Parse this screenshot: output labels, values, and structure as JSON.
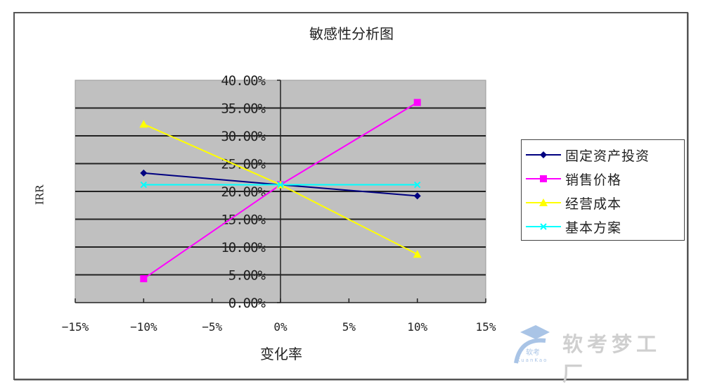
{
  "chart_data": {
    "type": "line",
    "title": "敏感性分析图",
    "xlabel": "变化率",
    "ylabel": "IRR",
    "x": [
      "-10%",
      "0%",
      "10%"
    ],
    "x_numeric": [
      -10,
      0,
      10
    ],
    "xlim": [
      -15,
      15
    ],
    "x_ticks": [
      "-15%",
      "-10%",
      "-5%",
      "0%",
      "5%",
      "10%",
      "15%"
    ],
    "ylim": [
      0,
      40
    ],
    "y_ticks": [
      "0.00%",
      "5.00%",
      "10.00%",
      "15.00%",
      "20.00%",
      "25.00%",
      "30.00%",
      "35.00%",
      "40.00%"
    ],
    "grid": true,
    "legend_position": "right",
    "series": [
      {
        "name": "固定资产投资",
        "color": "#000080",
        "marker": "diamond",
        "values": [
          23.3,
          21.2,
          19.2
        ]
      },
      {
        "name": "销售价格",
        "color": "#FF00FF",
        "marker": "square",
        "values": [
          4.3,
          21.2,
          36.0
        ]
      },
      {
        "name": "经营成本",
        "color": "#FFFF00",
        "marker": "triangle",
        "values": [
          32.1,
          21.2,
          8.7
        ]
      },
      {
        "name": "基本方案",
        "color": "#00FFFF",
        "marker": "x",
        "values": [
          21.2,
          21.2,
          21.2
        ]
      }
    ]
  },
  "labels": {
    "title": "敏感性分析图",
    "xlabel": "变化率",
    "ylabel": "IRR"
  },
  "legend": [
    {
      "label": "固定资产投资",
      "color": "#000080"
    },
    {
      "label": "销售价格",
      "color": "#FF00FF"
    },
    {
      "label": "经营成本",
      "color": "#FFFF00"
    },
    {
      "label": "基本方案",
      "color": "#00FFFF"
    }
  ],
  "watermark": {
    "text": "软考梦工厂",
    "logo_text": "软考",
    "logo_sub": "KuanKao"
  },
  "colors": {
    "plot_bg": "#C0C0C0",
    "grid": "#000000"
  }
}
